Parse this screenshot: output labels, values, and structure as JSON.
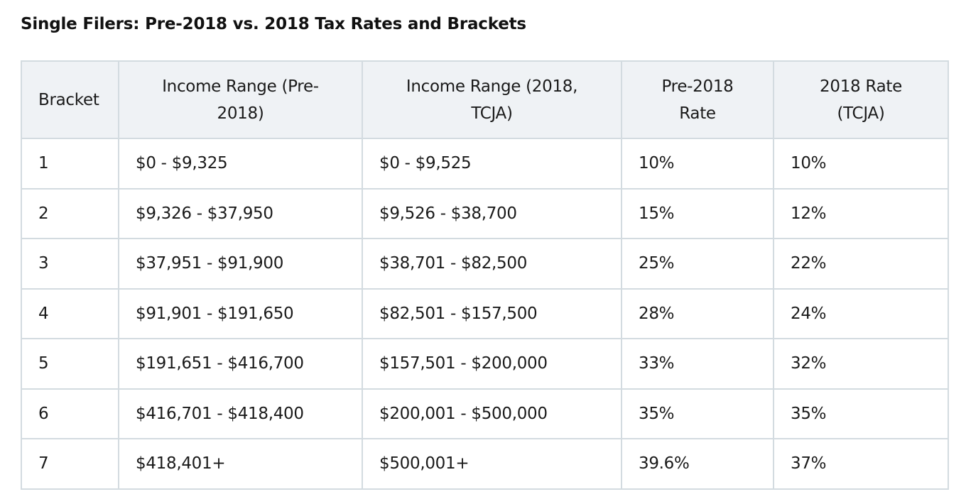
{
  "title": "Single Filers: Pre-2018 vs. 2018 Tax Rates and Brackets",
  "table": {
    "headers": [
      "Bracket",
      "Income Range (Pre-2018)",
      "Income Range (2018, TCJA)",
      "Pre-2018 Rate",
      "2018 Rate (TCJA)"
    ],
    "rows": [
      [
        "1",
        "$0 - $9,325",
        "$0 - $9,525",
        "10%",
        "10%"
      ],
      [
        "2",
        "$9,326 - $37,950",
        "$9,526 - $38,700",
        "15%",
        "12%"
      ],
      [
        "3",
        "$37,951 - $91,900",
        "$38,701 - $82,500",
        "25%",
        "22%"
      ],
      [
        "4",
        "$91,901 - $191,650",
        "$82,501 - $157,500",
        "28%",
        "24%"
      ],
      [
        "5",
        "$191,651 - $416,700",
        "$157,501 - $200,000",
        "33%",
        "32%"
      ],
      [
        "6",
        "$416,701 - $418,400",
        "$200,001 - $500,000",
        "35%",
        "35%"
      ],
      [
        "7",
        "$418,401+",
        "$500,001+",
        "39.6%",
        "37%"
      ]
    ]
  }
}
